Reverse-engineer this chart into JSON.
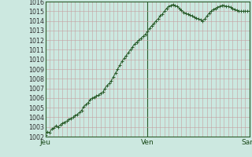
{
  "bg_color": "#cce8e0",
  "plot_bg_color": "#cce8e0",
  "grid_color": "#c4a0a0",
  "line_color": "#2a5c2a",
  "marker_color": "#2a5c2a",
  "vline_color": "#2a5c2a",
  "ylim": [
    1002,
    1016
  ],
  "yticks": [
    1002,
    1003,
    1004,
    1005,
    1006,
    1007,
    1008,
    1009,
    1010,
    1011,
    1012,
    1013,
    1014,
    1015,
    1016
  ],
  "xtick_labels": [
    "Jeu",
    "Ven",
    "Sam"
  ],
  "xtick_positions": [
    0,
    48,
    96
  ],
  "values": [
    1002.2,
    1002.5,
    1002.4,
    1002.8,
    1002.9,
    1003.1,
    1003.0,
    1003.2,
    1003.4,
    1003.5,
    1003.6,
    1003.8,
    1003.9,
    1004.0,
    1004.2,
    1004.3,
    1004.5,
    1004.7,
    1005.1,
    1005.3,
    1005.5,
    1005.8,
    1006.0,
    1006.1,
    1006.2,
    1006.3,
    1006.5,
    1006.6,
    1007.0,
    1007.3,
    1007.5,
    1007.8,
    1008.2,
    1008.6,
    1009.0,
    1009.4,
    1009.8,
    1010.1,
    1010.4,
    1010.7,
    1011.0,
    1011.3,
    1011.6,
    1011.8,
    1012.0,
    1012.2,
    1012.4,
    1012.6,
    1012.9,
    1013.2,
    1013.5,
    1013.7,
    1014.0,
    1014.2,
    1014.5,
    1014.7,
    1015.0,
    1015.3,
    1015.5,
    1015.6,
    1015.7,
    1015.6,
    1015.5,
    1015.3,
    1015.1,
    1014.9,
    1014.8,
    1014.7,
    1014.6,
    1014.5,
    1014.4,
    1014.3,
    1014.2,
    1014.1,
    1014.0,
    1014.2,
    1014.5,
    1014.8,
    1015.0,
    1015.2,
    1015.3,
    1015.4,
    1015.5,
    1015.6,
    1015.6,
    1015.5,
    1015.5,
    1015.4,
    1015.3,
    1015.2,
    1015.1,
    1015.0,
    1015.0,
    1015.0,
    1015.0,
    1015.0,
    1015.0
  ]
}
